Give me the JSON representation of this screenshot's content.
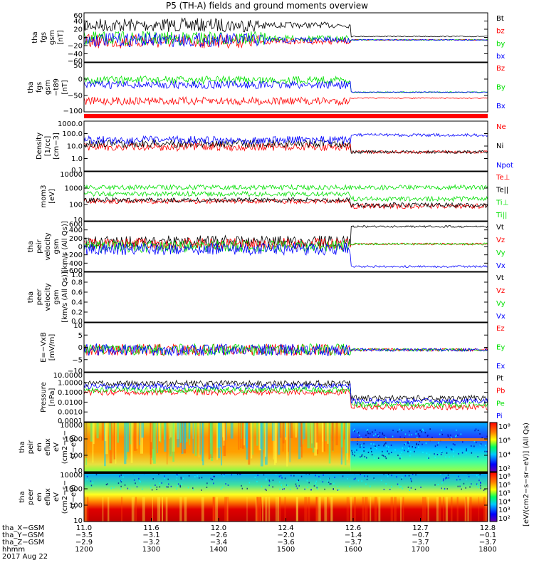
{
  "title": "P5 (TH-A) fields and ground moments overview",
  "colors": {
    "black": "#000000",
    "red": "#ff0000",
    "green": "#00e000",
    "blue": "#0000ff"
  },
  "chart_data": [
    {
      "id": "fgs",
      "type": "line",
      "ylabel": [
        "tha",
        "fgs",
        "gsm",
        "[nT]"
      ],
      "yticks": [
        "60",
        "40",
        "20",
        "0",
        "−20",
        "−40",
        "−60"
      ],
      "ylim": [
        -60,
        60
      ],
      "series": [
        {
          "name": "Bt",
          "color": "black",
          "level": "30"
        },
        {
          "name": "bz",
          "color": "red",
          "level": "-10"
        },
        {
          "name": "by",
          "color": "green",
          "level": "0"
        },
        {
          "name": "bx",
          "color": "blue",
          "level": "-5"
        }
      ]
    },
    {
      "id": "fgs_t89",
      "type": "line",
      "ylabel": [
        "tha",
        "fgs",
        "gsm",
        "−t89",
        "[nT]"
      ],
      "yticks": [
        "50",
        "0",
        "−50",
        "−100"
      ],
      "ylim": [
        -120,
        50
      ],
      "series": [
        {
          "name": "Bz",
          "color": "red",
          "level": "-70"
        },
        {
          "name": "By",
          "color": "green",
          "level": "0"
        },
        {
          "name": "Bx",
          "color": "blue",
          "level": "-20"
        }
      ]
    },
    {
      "id": "density",
      "type": "line",
      "ylabel": [
        "Density",
        "[1/cc]",
        "[cm−3]"
      ],
      "yticks": [
        "1000.0",
        "100.0",
        "10.0",
        "1.0",
        "0.1"
      ],
      "yscale": "log",
      "series": [
        {
          "name": "Ne",
          "color": "red"
        },
        {
          "name": "Ni",
          "color": "black"
        },
        {
          "name": "Npot",
          "color": "blue"
        }
      ]
    },
    {
      "id": "temp",
      "type": "line",
      "ylabel": [
        "mom3",
        "[eV]"
      ],
      "yticks": [
        "10000",
        "1000",
        "100",
        "10"
      ],
      "yscale": "log",
      "series": [
        {
          "name": "Te⊥",
          "color": "red"
        },
        {
          "name": "Te||",
          "color": "black"
        },
        {
          "name": "Ti⊥",
          "color": "green"
        },
        {
          "name": "Ti||",
          "color": "green"
        }
      ]
    },
    {
      "id": "peir_vel",
      "type": "line",
      "ylabel": [
        "tha",
        "peir",
        "velocity",
        "gsm",
        "[km/s (All Qs)]"
      ],
      "yticks": [
        "600",
        "400",
        "200",
        "0",
        "−200",
        "−400",
        "−600"
      ],
      "ylim": [
        -600,
        600
      ],
      "series": [
        {
          "name": "Vt",
          "color": "black"
        },
        {
          "name": "Vz",
          "color": "red"
        },
        {
          "name": "Vy",
          "color": "green"
        },
        {
          "name": "Vx",
          "color": "blue"
        }
      ]
    },
    {
      "id": "peer_vel",
      "type": "line",
      "ylabel": [
        "tha",
        "peer",
        "velocity",
        "gsm",
        "[km/s (All Qs)]"
      ],
      "yticks": [
        "1.0",
        "0.8",
        "0.6",
        "0.4",
        "0.2",
        "0.0"
      ],
      "ylim": [
        0,
        1
      ],
      "series": [
        {
          "name": "Vt",
          "color": "black"
        },
        {
          "name": "Vz",
          "color": "red"
        },
        {
          "name": "Vy",
          "color": "green"
        },
        {
          "name": "Vx",
          "color": "blue"
        }
      ]
    },
    {
      "id": "efield",
      "type": "line",
      "ylabel": [
        "E=−VxB",
        "[mV/m]"
      ],
      "yticks": [
        "10",
        "5",
        "0",
        "−5",
        "−10"
      ],
      "ylim": [
        -10,
        10
      ],
      "series": [
        {
          "name": "Ez",
          "color": "red"
        },
        {
          "name": "Ey",
          "color": "green"
        },
        {
          "name": "Ex",
          "color": "blue"
        }
      ]
    },
    {
      "id": "pressure",
      "type": "line",
      "ylabel": [
        "Pressure",
        "[nPa]"
      ],
      "yticks": [
        "10.0000",
        "1.0000",
        "0.1000",
        "0.0100",
        "0.0010",
        "0.0001"
      ],
      "yscale": "log",
      "series": [
        {
          "name": "Pt",
          "color": "black"
        },
        {
          "name": "Pb",
          "color": "red"
        },
        {
          "name": "Pe",
          "color": "green"
        },
        {
          "name": "Pi",
          "color": "blue"
        }
      ]
    },
    {
      "id": "peir_spec",
      "type": "heatmap",
      "ylabel": [
        "tha",
        "peir",
        "en",
        "eflux",
        "eV",
        "(cm2−s−",
        "sr−eV)"
      ],
      "yticks": [
        "10000",
        "1000",
        "100",
        "10"
      ]
    },
    {
      "id": "peer_spec",
      "type": "heatmap",
      "ylabel": [
        "tha",
        "peer",
        "en",
        "eflux",
        "eV",
        "(cm2−s−",
        "sr−eV)"
      ],
      "yticks": [
        "10000",
        "1000",
        "100",
        "10"
      ]
    }
  ],
  "colorbar": {
    "label": "[eV/(cm2−s−sr−eV)] (All Qs)",
    "upper_ticks": [
      "10⁸",
      "10⁶",
      "10⁴",
      "10²"
    ],
    "lower_ticks": [
      "10⁸",
      "10⁶",
      "10⁵",
      "10⁴",
      "10³",
      "10²"
    ]
  },
  "xaxis": {
    "rows": [
      {
        "label": "tha_X−GSM",
        "values": [
          "11.0",
          "11.6",
          "12.0",
          "12.4",
          "12.6",
          "12.7",
          "12.8"
        ]
      },
      {
        "label": "tha_Y−GSM",
        "values": [
          "−3.5",
          "−3.1",
          "−2.6",
          "−2.0",
          "−1.4",
          "−0.7",
          "−0.1"
        ]
      },
      {
        "label": "tha_Z−GSM",
        "values": [
          "−2.9",
          "−3.2",
          "−3.4",
          "−3.6",
          "−3.7",
          "−3.7",
          "−3.7"
        ]
      },
      {
        "label": "hhmm",
        "values": [
          "1200",
          "1300",
          "1400",
          "1500",
          "1600",
          "1700",
          "1800"
        ]
      }
    ],
    "date": "2017 Aug 22"
  }
}
